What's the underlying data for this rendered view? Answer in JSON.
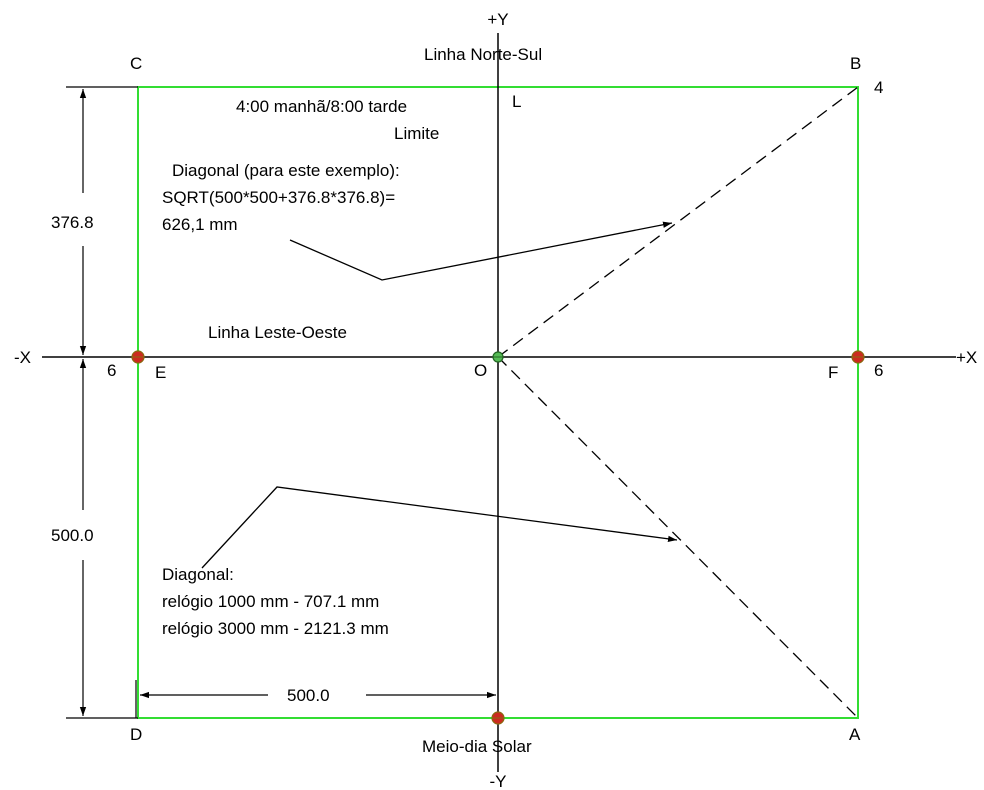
{
  "axes": {
    "plus_y": "+Y",
    "minus_y": "-Y",
    "plus_x": "+X",
    "minus_x": "-X"
  },
  "lines": {
    "north_south": "Linha Norte-Sul",
    "east_west": "Linha Leste-Oeste"
  },
  "points": {
    "A": "A",
    "B": "B",
    "C": "C",
    "D": "D",
    "E": "E",
    "F": "F",
    "O": "O",
    "L": "L"
  },
  "hour_labels": {
    "b_hour": "4",
    "e_hour": "6",
    "f_hour": "6"
  },
  "limit_note": {
    "line1": "4:00 manhã/8:00 tarde",
    "line2": "Limite"
  },
  "diagonal_example": {
    "line1": "Diagonal (para este exemplo):",
    "line2": "SQRT(500*500+376.8*376.8)=",
    "line3": "626,1 mm"
  },
  "diagonal_general": {
    "line1": "Diagonal:",
    "line2": "relógio 1000 mm - 707.1 mm",
    "line3": "relógio 3000 mm - 2121.3 mm"
  },
  "dimensions": {
    "top_height": "376.8",
    "bottom_height": "500.0",
    "half_width": "500.0"
  },
  "solar_noon": "Meio-dia Solar",
  "colors": {
    "rectangle": "#33dd33",
    "marker_fill": "#cc2a1f",
    "marker_outline": "#8a6a10",
    "origin_marker": "#33aa33"
  }
}
